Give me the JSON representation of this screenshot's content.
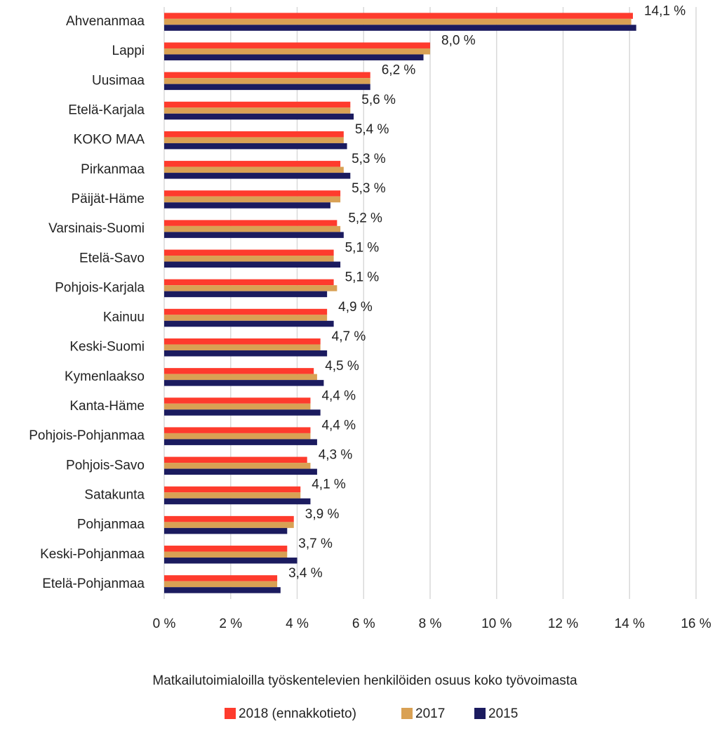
{
  "chart_data": {
    "type": "hbar",
    "xlabel": "Matkailutoimialoilla työskentelevien henkilöiden osuus koko työvoimasta",
    "categories": [
      "Ahvenanmaa",
      "Lappi",
      "Uusimaa",
      "Etelä-Karjala",
      "KOKO MAA",
      "Pirkanmaa",
      "Päijät-Häme",
      "Varsinais-Suomi",
      "Etelä-Savo",
      "Pohjois-Karjala",
      "Kainuu",
      "Keski-Suomi",
      "Kymenlaakso",
      "Kanta-Häme",
      "Pohjois-Pohjanmaa",
      "Pohjois-Savo",
      "Satakunta",
      "Pohjanmaa",
      "Keski-Pohjanmaa",
      "Etelä-Pohjanmaa"
    ],
    "series": [
      {
        "name": "2018 (ennakkotieto)",
        "color": "#fe3b2d",
        "values": [
          14.1,
          8.0,
          6.2,
          5.6,
          5.4,
          5.3,
          5.3,
          5.2,
          5.1,
          5.1,
          4.9,
          4.7,
          4.5,
          4.4,
          4.4,
          4.3,
          4.1,
          3.9,
          3.7,
          3.4
        ],
        "value_labels": [
          "14,1 %",
          "8,0 %",
          "6,2 %",
          "5,6 %",
          "5,4 %",
          "5,3 %",
          "5,3 %",
          "5,2 %",
          "5,1 %",
          "5,1 %",
          "4,9 %",
          "4,7 %",
          "4,5 %",
          "4,4 %",
          "4,4 %",
          "4,3 %",
          "4,1 %",
          "3,9 %",
          "3,7 %",
          "3,4 %"
        ]
      },
      {
        "name": "2017",
        "color": "#d9a154",
        "values": [
          14.05,
          8.0,
          6.2,
          5.6,
          5.4,
          5.4,
          5.3,
          5.3,
          5.1,
          5.2,
          4.9,
          4.7,
          4.6,
          4.4,
          4.4,
          4.4,
          4.1,
          3.9,
          3.7,
          3.4
        ]
      },
      {
        "name": "2015",
        "color": "#1b1b5f",
        "values": [
          14.2,
          7.8,
          6.2,
          5.7,
          5.5,
          5.6,
          5.0,
          5.4,
          5.3,
          4.9,
          5.1,
          4.9,
          4.8,
          4.7,
          4.6,
          4.6,
          4.4,
          3.7,
          4.0,
          3.5
        ]
      }
    ],
    "xlim": [
      0,
      16
    ],
    "xticks": [
      {
        "value": 0,
        "label": "0 %"
      },
      {
        "value": 2,
        "label": "2 %"
      },
      {
        "value": 4,
        "label": "4 %"
      },
      {
        "value": 6,
        "label": "6 %"
      },
      {
        "value": 8,
        "label": "8 %"
      },
      {
        "value": 10,
        "label": "10 %"
      },
      {
        "value": 12,
        "label": "12 %"
      },
      {
        "value": 14,
        "label": "14 %"
      },
      {
        "value": 16,
        "label": "16 %"
      }
    ],
    "grid": true,
    "legend": "bottom"
  }
}
